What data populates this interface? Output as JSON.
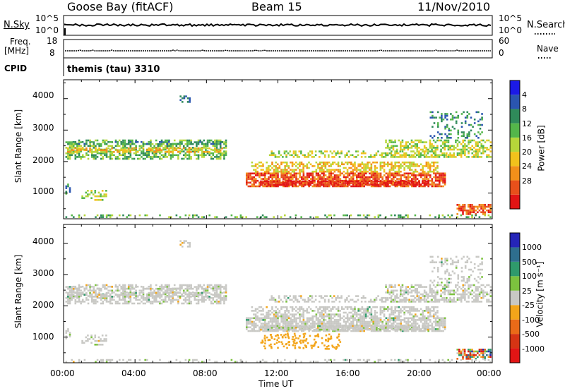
{
  "header": {
    "station": "Goose Bay (fitACF)",
    "beam": "Beam 15",
    "date": "11/Nov/2010"
  },
  "top_panels": {
    "nsky_label": "N.Sky",
    "nsky_ticks": [
      "10^5",
      "10^0"
    ],
    "nsearch_label": "N.Search",
    "nsearch_ticks": [
      "10^5",
      "10^0"
    ],
    "freq_label_line1": "Freq.",
    "freq_label_line2": "[MHz]",
    "freq_ticks": [
      "18",
      "8"
    ],
    "nave_label": "Nave",
    "nave_ticks": [
      "60",
      "0"
    ],
    "cpid_label": "CPID",
    "cpid_value": "themis (tau) 3310"
  },
  "chart_data": [
    {
      "type": "heatmap",
      "name": "power",
      "ylabel": "Slant Range [km]",
      "ylim": [
        180,
        4600
      ],
      "yticks": [
        1000,
        2000,
        3000,
        4000
      ],
      "xlabel": "Time UT",
      "xticks": [
        "00:00",
        "04:00",
        "08:00",
        "12:00",
        "16:00",
        "20:00",
        "00:00"
      ],
      "xlim_hours": [
        0,
        24
      ],
      "colorbar": {
        "label": "Power [dB]",
        "ticks": [
          "4",
          "8",
          "12",
          "16",
          "20",
          "24",
          "28"
        ],
        "colors": [
          "#1b1ae6",
          "#2a55b0",
          "#2f8a5a",
          "#54b64a",
          "#b6d63a",
          "#f2c21c",
          "#f2901a",
          "#e8501b",
          "#e21515"
        ]
      }
    },
    {
      "type": "heatmap",
      "name": "velocity",
      "ylabel": "Slant Range [km]",
      "ylim": [
        180,
        4600
      ],
      "yticks": [
        1000,
        2000,
        3000,
        4000
      ],
      "xlabel": "Time UT",
      "xticks": [
        "00:00",
        "04:00",
        "08:00",
        "12:00",
        "16:00",
        "20:00",
        "00:00"
      ],
      "xlim_hours": [
        0,
        24
      ],
      "colorbar": {
        "label": "Velocity [m s⁻¹]",
        "ticks": [
          "1000",
          "500",
          "100",
          "25",
          "-25",
          "-100",
          "-500",
          "-1000"
        ],
        "colors": [
          "#2525b8",
          "#2e6e8e",
          "#2f9a6c",
          "#7cc23e",
          "#c8c8c4",
          "#f3a51a",
          "#ea6a18",
          "#d63414",
          "#e21515"
        ]
      }
    }
  ]
}
